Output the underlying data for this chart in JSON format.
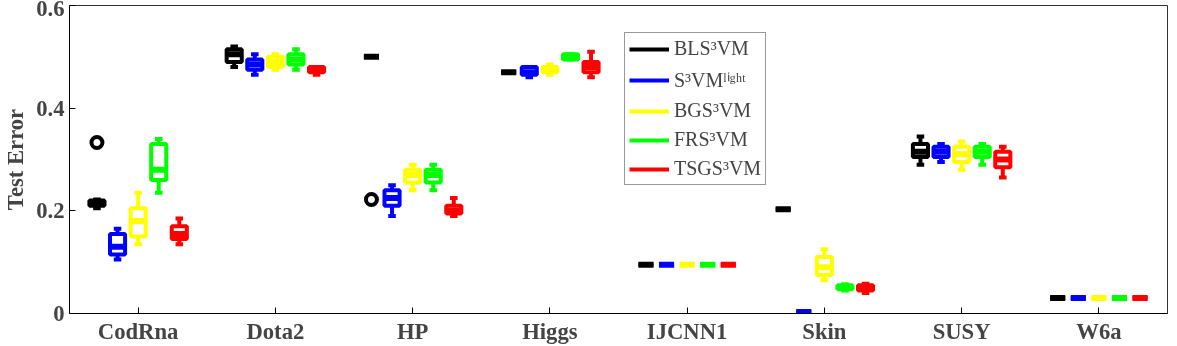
{
  "chart_data": {
    "type": "box",
    "ylabel": "Test Error",
    "categories": [
      "CodRna",
      "Dota2",
      "HP",
      "Higgs",
      "IJCNN1",
      "Skin",
      "SUSY",
      "W6a"
    ],
    "ylim": [
      0,
      0.6
    ],
    "yticks": [
      0,
      0.2,
      0.4,
      0.6
    ],
    "legend": "top",
    "grid": false,
    "series": [
      {
        "name": "BLS³VM",
        "color": "#000000",
        "boxes": [
          {
            "low": 0.205,
            "q1": 0.21,
            "median": 0.215,
            "q3": 0.22,
            "high": 0.222,
            "outliers": [
              0.333
            ]
          },
          {
            "low": 0.48,
            "q1": 0.49,
            "median": 0.505,
            "q3": 0.515,
            "high": 0.52
          },
          {
            "low": 0.5,
            "q1": 0.5,
            "median": 0.5,
            "q3": 0.5,
            "high": 0.5,
            "outliers": [
              0.222
            ]
          },
          {
            "low": 0.47,
            "q1": 0.47,
            "median": 0.47,
            "q3": 0.47,
            "high": 0.47
          },
          {
            "low": 0.095,
            "q1": 0.095,
            "median": 0.095,
            "q3": 0.095,
            "high": 0.095
          },
          {
            "low": 0.203,
            "q1": 0.203,
            "median": 0.203,
            "q3": 0.203,
            "high": 0.203
          },
          {
            "low": 0.29,
            "q1": 0.305,
            "median": 0.315,
            "q3": 0.33,
            "high": 0.345
          },
          {
            "low": 0.03,
            "q1": 0.03,
            "median": 0.03,
            "q3": 0.03,
            "high": 0.03
          }
        ]
      },
      {
        "name": "S³VMˡⁱᵍʰᵗ",
        "color": "#0000ff",
        "boxes": [
          {
            "low": 0.105,
            "q1": 0.115,
            "median": 0.13,
            "q3": 0.155,
            "high": 0.165
          },
          {
            "low": 0.465,
            "q1": 0.475,
            "median": 0.485,
            "q3": 0.495,
            "high": 0.505
          },
          {
            "low": 0.19,
            "q1": 0.21,
            "median": 0.225,
            "q3": 0.24,
            "high": 0.25
          },
          {
            "low": 0.46,
            "q1": 0.465,
            "median": 0.47,
            "q3": 0.48,
            "high": 0.48
          },
          {
            "low": 0.095,
            "q1": 0.095,
            "median": 0.095,
            "q3": 0.095,
            "high": 0.095
          },
          {
            "low": 0.003,
            "q1": 0.003,
            "median": 0.003,
            "q3": 0.003,
            "high": 0.003
          },
          {
            "low": 0.295,
            "q1": 0.305,
            "median": 0.315,
            "q3": 0.325,
            "high": 0.33
          },
          {
            "low": 0.03,
            "q1": 0.03,
            "median": 0.03,
            "q3": 0.03,
            "high": 0.03
          }
        ]
      },
      {
        "name": "BGS³VM",
        "color": "#ffff00",
        "boxes": [
          {
            "low": 0.135,
            "q1": 0.15,
            "median": 0.18,
            "q3": 0.205,
            "high": 0.235
          },
          {
            "low": 0.475,
            "q1": 0.48,
            "median": 0.49,
            "q3": 0.5,
            "high": 0.505
          },
          {
            "low": 0.24,
            "q1": 0.255,
            "median": 0.27,
            "q3": 0.28,
            "high": 0.29
          },
          {
            "low": 0.465,
            "q1": 0.47,
            "median": 0.475,
            "q3": 0.48,
            "high": 0.485
          },
          {
            "low": 0.095,
            "q1": 0.095,
            "median": 0.095,
            "q3": 0.095,
            "high": 0.095
          },
          {
            "low": 0.065,
            "q1": 0.075,
            "median": 0.09,
            "q3": 0.11,
            "high": 0.125
          },
          {
            "low": 0.28,
            "q1": 0.295,
            "median": 0.31,
            "q3": 0.325,
            "high": 0.335
          },
          {
            "low": 0.03,
            "q1": 0.03,
            "median": 0.03,
            "q3": 0.03,
            "high": 0.03
          }
        ]
      },
      {
        "name": "FRS³VM",
        "color": "#00ff00",
        "boxes": [
          {
            "low": 0.235,
            "q1": 0.26,
            "median": 0.28,
            "q3": 0.33,
            "high": 0.34
          },
          {
            "low": 0.475,
            "q1": 0.485,
            "median": 0.495,
            "q3": 0.505,
            "high": 0.515
          },
          {
            "low": 0.24,
            "q1": 0.255,
            "median": 0.27,
            "q3": 0.28,
            "high": 0.29
          },
          {
            "low": 0.495,
            "q1": 0.495,
            "median": 0.5,
            "q3": 0.505,
            "high": 0.505
          },
          {
            "low": 0.095,
            "q1": 0.095,
            "median": 0.095,
            "q3": 0.095,
            "high": 0.095
          },
          {
            "low": 0.045,
            "q1": 0.047,
            "median": 0.05,
            "q3": 0.055,
            "high": 0.057
          },
          {
            "low": 0.29,
            "q1": 0.305,
            "median": 0.315,
            "q3": 0.325,
            "high": 0.33
          },
          {
            "low": 0.03,
            "q1": 0.03,
            "median": 0.03,
            "q3": 0.03,
            "high": 0.03
          }
        ]
      },
      {
        "name": "TSGS³VM",
        "color": "#ff0000",
        "boxes": [
          {
            "low": 0.135,
            "q1": 0.145,
            "median": 0.155,
            "q3": 0.17,
            "high": 0.185
          },
          {
            "low": 0.465,
            "q1": 0.47,
            "median": 0.475,
            "q3": 0.48,
            "high": 0.48
          },
          {
            "low": 0.19,
            "q1": 0.195,
            "median": 0.2,
            "q3": 0.21,
            "high": 0.225
          },
          {
            "low": 0.46,
            "q1": 0.47,
            "median": 0.48,
            "q3": 0.49,
            "high": 0.51
          },
          {
            "low": 0.095,
            "q1": 0.095,
            "median": 0.095,
            "q3": 0.095,
            "high": 0.095
          },
          {
            "low": 0.04,
            "q1": 0.045,
            "median": 0.05,
            "q3": 0.055,
            "high": 0.058
          },
          {
            "low": 0.265,
            "q1": 0.285,
            "median": 0.3,
            "q3": 0.315,
            "high": 0.325
          },
          {
            "low": 0.03,
            "q1": 0.03,
            "median": 0.03,
            "q3": 0.03,
            "high": 0.03
          }
        ]
      }
    ]
  }
}
